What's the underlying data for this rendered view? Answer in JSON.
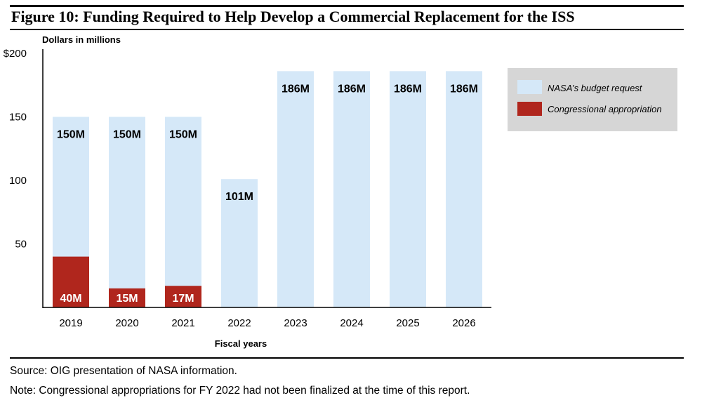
{
  "figure": {
    "title": "Figure 10:  Funding Required to Help Develop a Commercial Replacement for the ISS",
    "source": "Source:  OIG presentation of NASA information.",
    "note": "Note:  Congressional appropriations for FY 2022 had not been finalized at the time of this report."
  },
  "chart_data": {
    "type": "bar",
    "title": "Figure 10:  Funding Required to Help Develop a Commercial Replacement for the ISS",
    "ylabel": "Dollars in millions",
    "xlabel": "Fiscal years",
    "ylim": [
      0,
      200
    ],
    "yticks": [
      50,
      100,
      150,
      200
    ],
    "ytick_labels": [
      "50",
      "100",
      "150",
      "$200"
    ],
    "grid": false,
    "legend_position": "top-right",
    "categories": [
      "2019",
      "2020",
      "2021",
      "2022",
      "2023",
      "2024",
      "2025",
      "2026"
    ],
    "series": [
      {
        "name": "NASA’s budget request",
        "color": "#d5e8f8",
        "values": [
          150,
          150,
          150,
          101,
          186,
          186,
          186,
          186
        ],
        "labels": [
          "150M",
          "150M",
          "150M",
          "101M",
          "186M",
          "186M",
          "186M",
          "186M"
        ]
      },
      {
        "name": "Congressional appropriation",
        "color": "#b0261d",
        "values": [
          40,
          15,
          17,
          null,
          null,
          null,
          null,
          null
        ],
        "labels": [
          "40M",
          "15M",
          "17M",
          null,
          null,
          null,
          null,
          null
        ]
      }
    ]
  },
  "colors": {
    "request": "#d5e8f8",
    "appropriation": "#b0261d",
    "legend_bg": "#d6d6d6"
  }
}
